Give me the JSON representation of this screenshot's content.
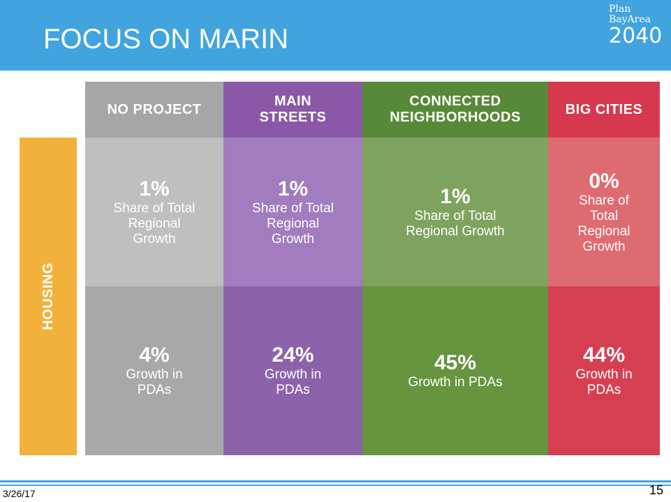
{
  "header": {
    "title": "FOCUS ON MARIN",
    "logo": [
      "Plan",
      "BayArea",
      "2040"
    ]
  },
  "table": {
    "row_label": "HOUSING",
    "columns": [
      {
        "header": [
          "NO PROJECT"
        ],
        "cells": [
          {
            "value": "1%",
            "text": [
              "Share of Total",
              "Regional",
              "Growth"
            ]
          },
          {
            "value": "4%",
            "text": [
              "Growth in",
              "PDAs"
            ]
          }
        ]
      },
      {
        "header": [
          "MAIN",
          "STREETS"
        ],
        "cells": [
          {
            "value": "1%",
            "text": [
              "Share of Total",
              "Regional",
              "Growth"
            ]
          },
          {
            "value": "24%",
            "text": [
              "Growth in",
              "PDAs"
            ]
          }
        ]
      },
      {
        "header": [
          "CONNECTED",
          "NEIGHBORHOODS"
        ],
        "cells": [
          {
            "value": "1%",
            "text": [
              "Share of Total",
              "Regional Growth"
            ]
          },
          {
            "value": "45%",
            "text": [
              "Growth in PDAs"
            ]
          }
        ]
      },
      {
        "header": [
          "BIG CITIES"
        ],
        "cells": [
          {
            "value": "0%",
            "text": [
              "Share of",
              "Total",
              "Regional",
              "Growth"
            ]
          },
          {
            "value": "44%",
            "text": [
              "Growth in",
              "PDAs"
            ]
          }
        ]
      }
    ]
  },
  "footer": {
    "date": "3/26/17",
    "page": "15"
  }
}
